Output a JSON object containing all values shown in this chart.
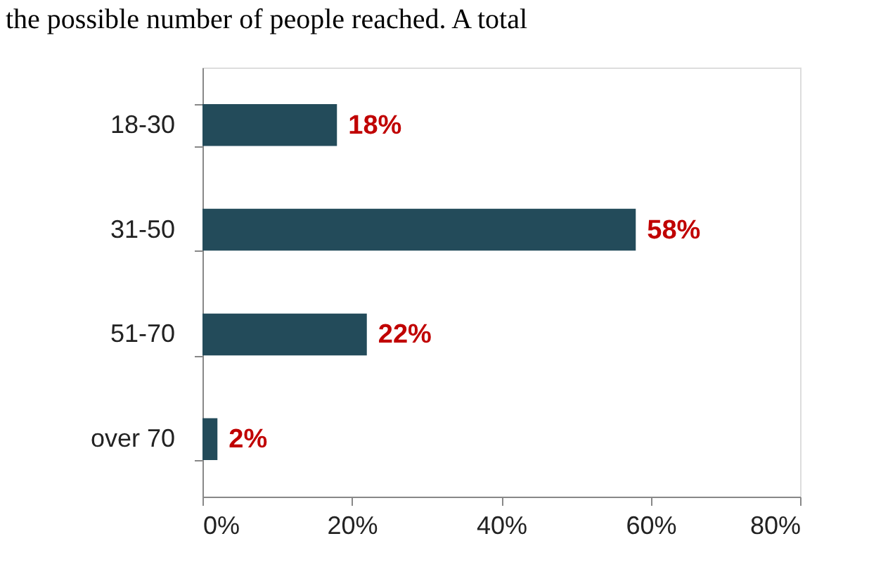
{
  "chart_data": {
    "type": "bar",
    "orientation": "horizontal",
    "categories": [
      "18-30",
      "31-50",
      "51-70",
      "over 70"
    ],
    "values": [
      18,
      58,
      22,
      2
    ],
    "color": "#234b5a",
    "value_labels": [
      "18%",
      "58%",
      "22%",
      "2%"
    ],
    "xlim": [
      0,
      80
    ],
    "xticks": [
      {
        "value": 0,
        "label": "0%"
      },
      {
        "value": 20,
        "label": "20%"
      },
      {
        "value": 40,
        "label": "40%"
      },
      {
        "value": 60,
        "label": "60%"
      },
      {
        "value": 80,
        "label": "80%"
      }
    ],
    "grid": false,
    "annotations": [
      "the possible number of people reached.  A total"
    ]
  }
}
